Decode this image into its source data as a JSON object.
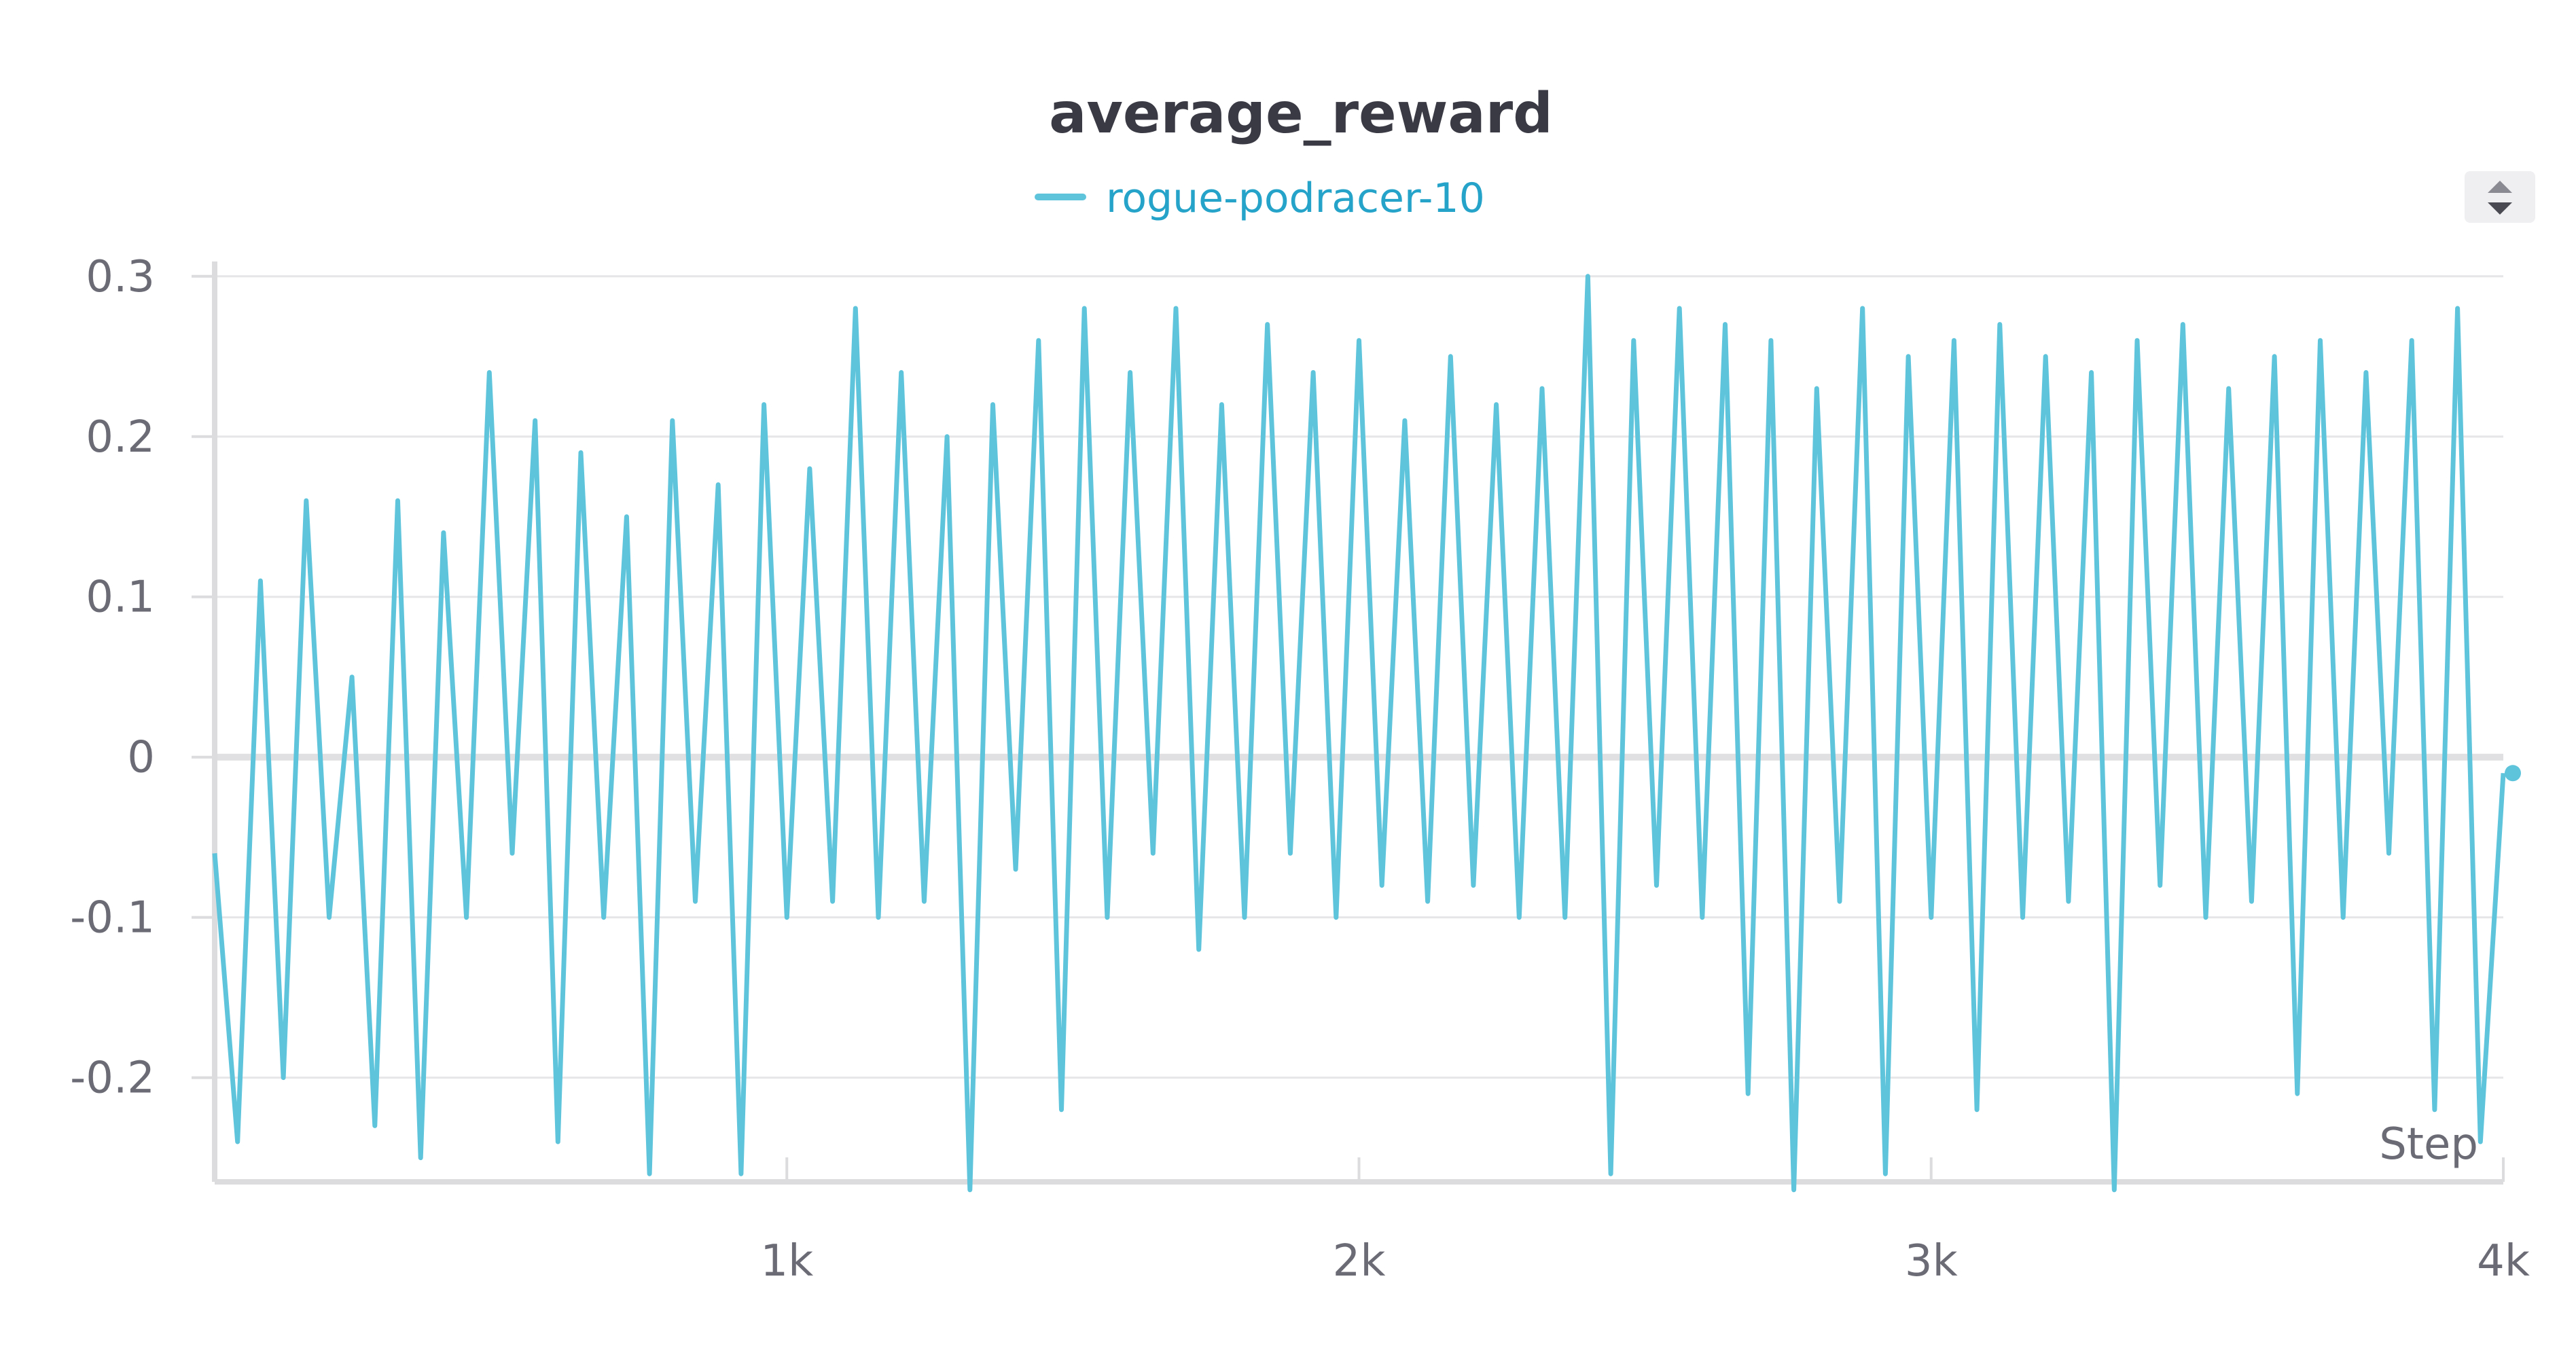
{
  "chart_data": {
    "type": "line",
    "title": "average_reward",
    "xlabel": "Step",
    "ylabel": "",
    "xlim": [
      0,
      4000
    ],
    "ylim": [
      -0.265,
      0.305
    ],
    "x_ticks": [
      1000,
      2000,
      3000,
      4000
    ],
    "x_tick_labels": [
      "1k",
      "2k",
      "3k",
      "4k"
    ],
    "y_ticks": [
      -0.2,
      -0.1,
      0,
      0.1,
      0.2,
      0.3
    ],
    "y_tick_labels": [
      "-0.2",
      "-0.1",
      "0",
      "0.1",
      "0.2",
      "0.3"
    ],
    "grid": true,
    "legend_position": "top-center",
    "colors": {
      "series": "#5ec4dc",
      "legend_text": "#25a3c9",
      "grid": "#e6e6e8",
      "axis": "#dcdcde",
      "zero_line": "#e0e0e2"
    },
    "sort_control_icon": "sort-arrows-icon",
    "series": [
      {
        "name": "rogue-podracer-10",
        "x": [
          0,
          40,
          80,
          120,
          160,
          200,
          240,
          280,
          320,
          360,
          400,
          440,
          480,
          520,
          560,
          600,
          640,
          680,
          720,
          760,
          800,
          840,
          880,
          920,
          960,
          1000,
          1040,
          1080,
          1120,
          1160,
          1200,
          1240,
          1280,
          1320,
          1360,
          1400,
          1440,
          1480,
          1520,
          1560,
          1600,
          1640,
          1680,
          1720,
          1760,
          1800,
          1840,
          1880,
          1920,
          1960,
          2000,
          2040,
          2080,
          2120,
          2160,
          2200,
          2240,
          2280,
          2320,
          2360,
          2400,
          2440,
          2480,
          2520,
          2560,
          2600,
          2640,
          2680,
          2720,
          2760,
          2800,
          2840,
          2880,
          2920,
          2960,
          3000,
          3040,
          3080,
          3120,
          3160,
          3200,
          3240,
          3280,
          3320,
          3360,
          3400,
          3440,
          3480,
          3520,
          3560,
          3600,
          3640,
          3680,
          3720,
          3760,
          3800,
          3840,
          3880,
          3920,
          3960,
          4000
        ],
        "y": [
          -0.06,
          -0.24,
          0.11,
          -0.2,
          0.16,
          -0.1,
          0.05,
          -0.23,
          0.16,
          -0.25,
          0.14,
          -0.1,
          0.24,
          -0.06,
          0.21,
          -0.24,
          0.19,
          -0.1,
          0.15,
          -0.26,
          0.21,
          -0.09,
          0.17,
          -0.26,
          0.22,
          -0.1,
          0.18,
          -0.09,
          0.28,
          -0.1,
          0.24,
          -0.09,
          0.2,
          -0.27,
          0.22,
          -0.07,
          0.26,
          -0.22,
          0.28,
          -0.1,
          0.24,
          -0.06,
          0.28,
          -0.12,
          0.22,
          -0.1,
          0.27,
          -0.06,
          0.24,
          -0.1,
          0.26,
          -0.08,
          0.21,
          -0.09,
          0.25,
          -0.08,
          0.22,
          -0.1,
          0.23,
          -0.1,
          0.3,
          -0.26,
          0.26,
          -0.08,
          0.28,
          -0.1,
          0.27,
          -0.21,
          0.26,
          -0.27,
          0.23,
          -0.09,
          0.28,
          -0.26,
          0.25,
          -0.1,
          0.26,
          -0.22,
          0.27,
          -0.1,
          0.25,
          -0.09,
          0.24,
          -0.27,
          0.26,
          -0.08,
          0.27,
          -0.1,
          0.23,
          -0.09,
          0.25,
          -0.21,
          0.26,
          -0.1,
          0.24,
          -0.06,
          0.26,
          -0.22,
          0.28,
          -0.24,
          -0.01
        ]
      }
    ]
  }
}
